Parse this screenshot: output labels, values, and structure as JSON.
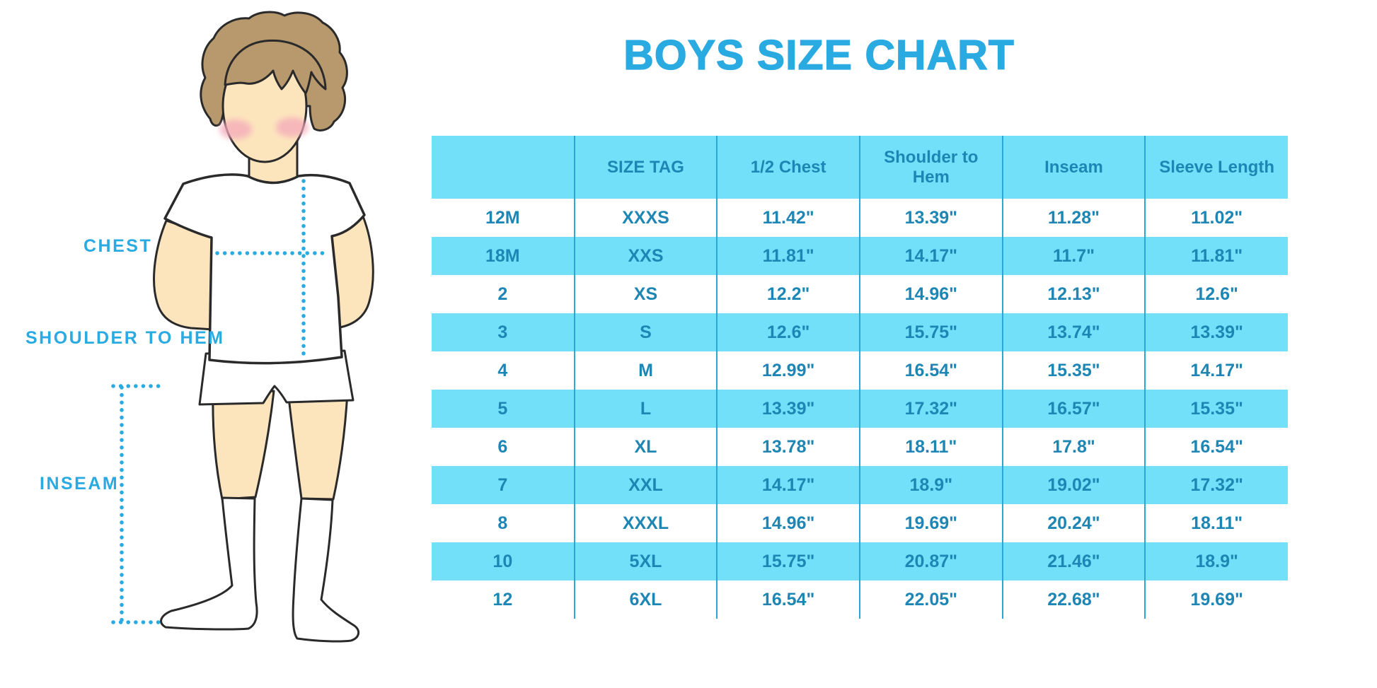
{
  "title": "BOYS SIZE CHART",
  "colors": {
    "accent_blue": "#29abe2",
    "table_stripe_fill": "#72e0f9",
    "table_text": "#1d86b4",
    "column_divider": "#2aa7d4",
    "skin": "#fce5bd",
    "hair": "#b8996e",
    "cheek": "#f4a9ba",
    "outline": "#2a2a2a"
  },
  "figure": {
    "labels": {
      "chest": "CHEST",
      "shoulder_to_hem": "SHOULDER TO HEM",
      "inseam": "INSEAM"
    }
  },
  "table": {
    "columns": [
      "",
      "SIZE TAG",
      "1/2 Chest",
      "Shoulder to Hem",
      "Inseam",
      "Sleeve Length"
    ],
    "rows": [
      [
        "12M",
        "XXXS",
        "11.42\"",
        "13.39\"",
        "11.28\"",
        "11.02\""
      ],
      [
        "18M",
        "XXS",
        "11.81\"",
        "14.17\"",
        "11.7\"",
        "11.81\""
      ],
      [
        "2",
        "XS",
        "12.2\"",
        "14.96\"",
        "12.13\"",
        "12.6\""
      ],
      [
        "3",
        "S",
        "12.6\"",
        "15.75\"",
        "13.74\"",
        "13.39\""
      ],
      [
        "4",
        "M",
        "12.99\"",
        "16.54\"",
        "15.35\"",
        "14.17\""
      ],
      [
        "5",
        "L",
        "13.39\"",
        "17.32\"",
        "16.57\"",
        "15.35\""
      ],
      [
        "6",
        "XL",
        "13.78\"",
        "18.11\"",
        "17.8\"",
        "16.54\""
      ],
      [
        "7",
        "XXL",
        "14.17\"",
        "18.9\"",
        "19.02\"",
        "17.32\""
      ],
      [
        "8",
        "XXXL",
        "14.96\"",
        "19.69\"",
        "20.24\"",
        "18.11\""
      ],
      [
        "10",
        "5XL",
        "15.75\"",
        "20.87\"",
        "21.46\"",
        "18.9\""
      ],
      [
        "12",
        "6XL",
        "16.54\"",
        "22.05\"",
        "22.68\"",
        "19.69\""
      ]
    ]
  }
}
